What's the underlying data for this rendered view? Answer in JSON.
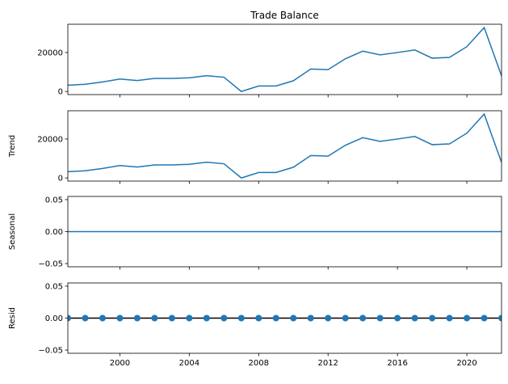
{
  "colors": {
    "line": "#1f77b4",
    "marker": "#1f77b4",
    "zero_line": "#000000",
    "axes": "#000000",
    "background": "#ffffff"
  },
  "chart_data": {
    "type": "line",
    "title": "Trade Balance",
    "x_axis": {
      "xlim": [
        1997,
        2022
      ],
      "ticks": [
        2000,
        2004,
        2008,
        2012,
        2016,
        2020
      ],
      "tick_labels": [
        "2000",
        "2004",
        "2008",
        "2012",
        "2016",
        "2020"
      ]
    },
    "x": [
      1997,
      1998,
      1999,
      2000,
      2001,
      2002,
      2003,
      2004,
      2005,
      2006,
      2007,
      2008,
      2009,
      2010,
      2011,
      2012,
      2013,
      2014,
      2015,
      2016,
      2017,
      2018,
      2019,
      2020,
      2021,
      2022
    ],
    "panels": [
      {
        "name": "observed",
        "ylabel": "",
        "title": "Trade Balance",
        "type": "line",
        "ylim": [
          -1600,
          34500
        ],
        "yticks": [
          0,
          20000
        ],
        "ytick_labels": [
          "0",
          "20000"
        ],
        "values": [
          3200,
          3700,
          4900,
          6400,
          5600,
          6700,
          6700,
          7000,
          8100,
          7300,
          0,
          2800,
          2800,
          5500,
          11500,
          11200,
          16800,
          20700,
          18800,
          20000,
          21300,
          17100,
          17500,
          23000,
          32800,
          8000
        ]
      },
      {
        "name": "trend",
        "ylabel": "Trend",
        "type": "line",
        "ylim": [
          -1600,
          34500
        ],
        "yticks": [
          0,
          20000
        ],
        "ytick_labels": [
          "0",
          "20000"
        ],
        "values": [
          3200,
          3700,
          4900,
          6400,
          5600,
          6700,
          6700,
          7000,
          8100,
          7300,
          0,
          2800,
          2800,
          5500,
          11500,
          11200,
          16800,
          20700,
          18800,
          20000,
          21300,
          17100,
          17500,
          23000,
          32800,
          8000
        ]
      },
      {
        "name": "seasonal",
        "ylabel": "Seasonal",
        "type": "line",
        "ylim": [
          -0.055,
          0.055
        ],
        "yticks": [
          0.05,
          0.0,
          -0.05
        ],
        "ytick_labels": [
          "0.05",
          "0.00",
          "−0.05"
        ],
        "values": [
          0,
          0,
          0,
          0,
          0,
          0,
          0,
          0,
          0,
          0,
          0,
          0,
          0,
          0,
          0,
          0,
          0,
          0,
          0,
          0,
          0,
          0,
          0,
          0,
          0,
          0
        ]
      },
      {
        "name": "resid",
        "ylabel": "Resid",
        "type": "scatter",
        "ylim": [
          -0.055,
          0.055
        ],
        "yticks": [
          0.05,
          0.0,
          -0.05
        ],
        "ytick_labels": [
          "0.05",
          "0.00",
          "−0.05"
        ],
        "zero_line": true,
        "values": [
          0,
          0,
          0,
          0,
          0,
          0,
          0,
          0,
          0,
          0,
          0,
          0,
          0,
          0,
          0,
          0,
          0,
          0,
          0,
          0,
          0,
          0,
          0,
          0,
          0,
          0
        ]
      }
    ]
  }
}
